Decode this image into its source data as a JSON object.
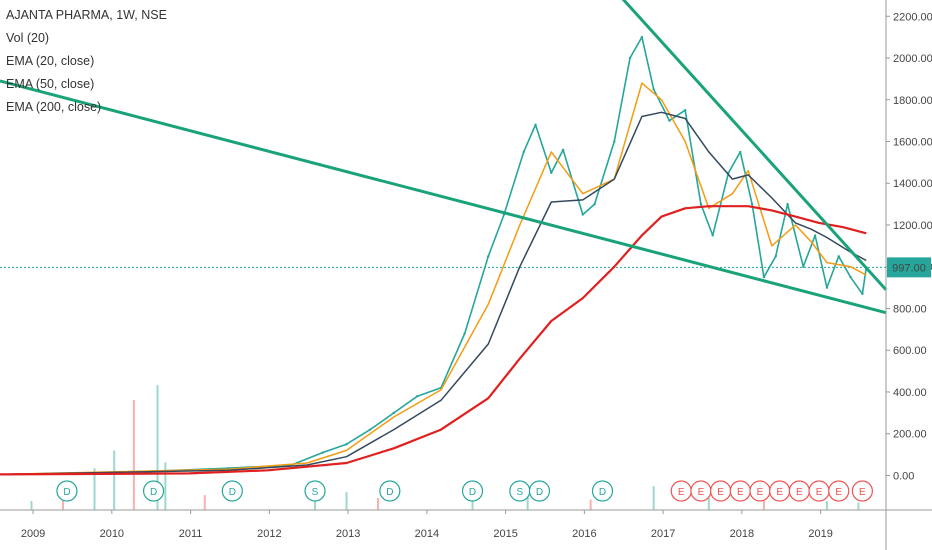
{
  "legend": {
    "symbol": "AJANTA PHARMA, 1W, NSE",
    "vol": "Vol (20)",
    "ema20": "EMA (20, close)",
    "ema50": "EMA (50, close)",
    "ema200": "EMA (200, close)"
  },
  "colors": {
    "up": "#26a69a",
    "down": "#ef5350",
    "ema20": "#f39c12",
    "ema50": "#34495e",
    "ema200": "#e02020",
    "trendline": "#1aa37a",
    "price_line": "#26a69a",
    "volume_up": "#26a69a",
    "volume_down": "#ef5350"
  },
  "chart_data": {
    "type": "line",
    "title": "AJANTA PHARMA, 1W, NSE",
    "xlabel": "",
    "ylabel": "",
    "x_ticks": [
      "2009",
      "2010",
      "2011",
      "2012",
      "2013",
      "2014",
      "2015",
      "2016",
      "2017",
      "2018",
      "2019"
    ],
    "y_ticks": [
      "0.00",
      "200.00",
      "400.00",
      "600.00",
      "800.00",
      "1000.00",
      "1200.00",
      "1400.00",
      "1600.00",
      "1800.00",
      "2000.00",
      "2200.00"
    ],
    "ylim": [
      -60,
      2230
    ],
    "xlim": [
      2008.6,
      2019.85
    ],
    "last_price_label": "997.00",
    "last_price": 997,
    "series": [
      {
        "name": "Price",
        "x": [
          2008.6,
          2009.5,
          2010.5,
          2011.5,
          2012.3,
          2012.7,
          2013.0,
          2013.3,
          2013.6,
          2013.9,
          2014.2,
          2014.5,
          2014.8,
          2015.0,
          2015.25,
          2015.4,
          2015.6,
          2015.75,
          2016.0,
          2016.15,
          2016.4,
          2016.6,
          2016.75,
          2016.9,
          2017.1,
          2017.3,
          2017.5,
          2017.65,
          2017.85,
          2018.0,
          2018.15,
          2018.3,
          2018.45,
          2018.6,
          2018.8,
          2018.95,
          2019.1,
          2019.25,
          2019.4,
          2019.55,
          2019.6
        ],
        "values": [
          5,
          10,
          20,
          35,
          50,
          110,
          150,
          220,
          300,
          380,
          420,
          680,
          1050,
          1250,
          1550,
          1680,
          1450,
          1560,
          1250,
          1300,
          1600,
          2000,
          2100,
          1850,
          1700,
          1750,
          1300,
          1150,
          1450,
          1550,
          1300,
          950,
          1050,
          1300,
          1000,
          1150,
          900,
          1050,
          950,
          870,
          997
        ]
      },
      {
        "name": "EMA (20, close)",
        "x": [
          2008.6,
          2011.5,
          2012.5,
          2013.0,
          2013.6,
          2014.2,
          2014.8,
          2015.2,
          2015.6,
          2016.0,
          2016.4,
          2016.75,
          2017.0,
          2017.3,
          2017.6,
          2017.9,
          2018.1,
          2018.4,
          2018.7,
          2018.9,
          2019.1,
          2019.4,
          2019.6
        ],
        "values": [
          5,
          30,
          60,
          120,
          280,
          410,
          820,
          1200,
          1550,
          1350,
          1420,
          1880,
          1800,
          1600,
          1280,
          1350,
          1460,
          1100,
          1200,
          1120,
          1020,
          1000,
          960
        ]
      },
      {
        "name": "EMA (50, close)",
        "x": [
          2008.6,
          2011.5,
          2012.5,
          2013.0,
          2013.6,
          2014.2,
          2014.8,
          2015.2,
          2015.6,
          2016.0,
          2016.4,
          2016.75,
          2017.0,
          2017.3,
          2017.6,
          2017.9,
          2018.1,
          2018.4,
          2018.7,
          2018.9,
          2019.1,
          2019.4,
          2019.6
        ],
        "values": [
          5,
          25,
          50,
          90,
          220,
          360,
          630,
          1000,
          1310,
          1320,
          1420,
          1720,
          1740,
          1710,
          1550,
          1420,
          1440,
          1330,
          1210,
          1180,
          1140,
          1070,
          1030
        ]
      },
      {
        "name": "EMA (200, close)",
        "x": [
          2008.6,
          2011.0,
          2012.0,
          2013.0,
          2013.6,
          2014.2,
          2014.8,
          2015.2,
          2015.6,
          2016.0,
          2016.4,
          2016.75,
          2017.0,
          2017.3,
          2017.6,
          2017.9,
          2018.1,
          2018.4,
          2018.7,
          2019.0,
          2019.3,
          2019.6
        ],
        "values": [
          5,
          10,
          25,
          60,
          130,
          220,
          370,
          560,
          740,
          850,
          1000,
          1150,
          1240,
          1280,
          1290,
          1290,
          1290,
          1270,
          1240,
          1210,
          1190,
          1160
        ]
      },
      {
        "name": "Upper trendline",
        "x": [
          2016.3,
          2019.85
        ],
        "values": [
          2370,
          890
        ]
      },
      {
        "name": "Lower trendline",
        "x": [
          2008.6,
          2019.85
        ],
        "values": [
          1890,
          780
        ]
      }
    ],
    "volume": {
      "x": [
        2009.0,
        2009.4,
        2009.8,
        2010.05,
        2010.3,
        2010.6,
        2010.7,
        2011.2,
        2012.6,
        2013.0,
        2013.4,
        2014.6,
        2015.3,
        2016.1,
        2016.9,
        2017.6,
        2018.3,
        2019.1,
        2019.5
      ],
      "values": [
        30,
        60,
        140,
        200,
        370,
        420,
        160,
        50,
        70,
        60,
        40,
        30,
        45,
        35,
        80,
        40,
        50,
        30,
        25
      ]
    },
    "event_markers": [
      {
        "label": "D",
        "x": 2009.45
      },
      {
        "label": "D",
        "x": 2010.55
      },
      {
        "label": "D",
        "x": 2011.55
      },
      {
        "label": "S",
        "x": 2012.6
      },
      {
        "label": "D",
        "x": 2013.55
      },
      {
        "label": "D",
        "x": 2014.6
      },
      {
        "label": "S",
        "x": 2015.2
      },
      {
        "label": "D",
        "x": 2015.45
      },
      {
        "label": "D",
        "x": 2016.25
      },
      {
        "label": "E",
        "x": 2017.25
      },
      {
        "label": "E",
        "x": 2017.5
      },
      {
        "label": "E",
        "x": 2017.75
      },
      {
        "label": "E",
        "x": 2018.0
      },
      {
        "label": "E",
        "x": 2018.25
      },
      {
        "label": "E",
        "x": 2018.5
      },
      {
        "label": "E",
        "x": 2018.75
      },
      {
        "label": "E",
        "x": 2019.0
      },
      {
        "label": "E",
        "x": 2019.25
      },
      {
        "label": "E",
        "x": 2019.55
      }
    ]
  }
}
